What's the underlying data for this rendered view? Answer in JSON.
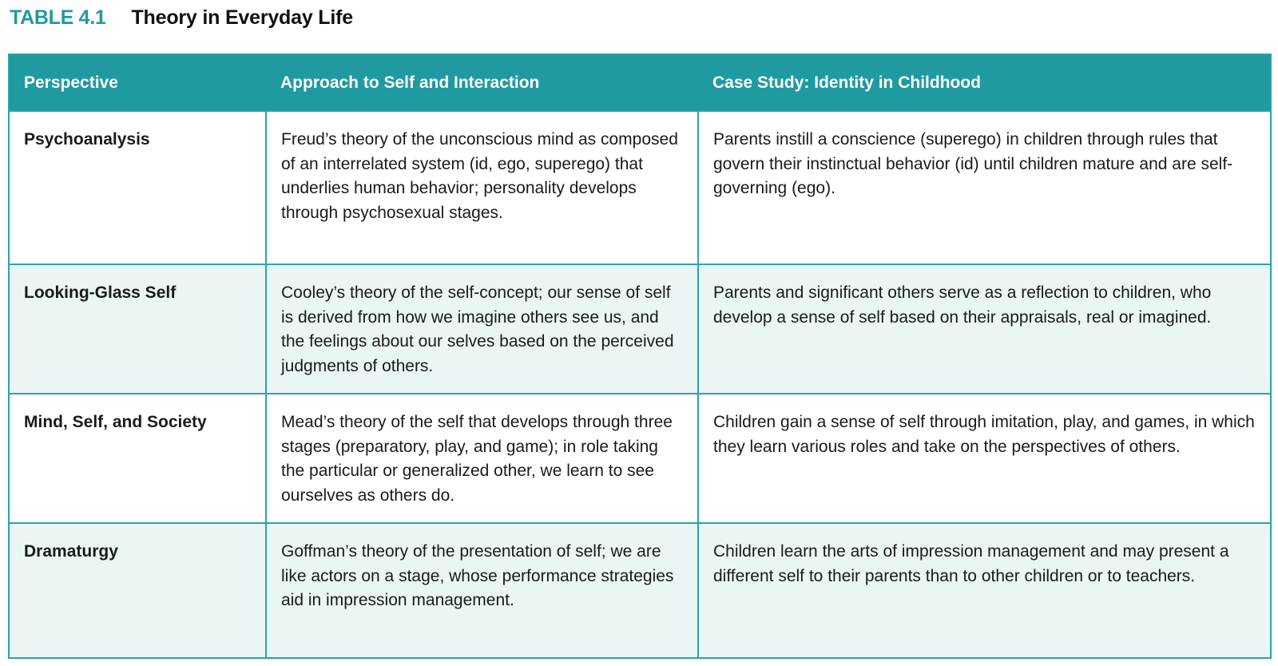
{
  "caption": {
    "label": "TABLE 4.1",
    "title": "Theory in Everyday Life"
  },
  "colors": {
    "accent": "#1f9aa1",
    "border": "#2ba3aa",
    "row_shade": "#eaf5f6"
  },
  "table": {
    "headers": [
      "Perspective",
      "Approach to Self and Interaction",
      "Case Study: Identity in Childhood"
    ],
    "rows": [
      {
        "perspective": "Psychoanalysis",
        "approach": "Freud’s theory of the unconscious mind as composed of an interrelated system (id, ego, superego) that underlies human behavior; personality develops through psychosexual stages.",
        "case_study": "Parents instill a conscience (superego) in children through rules that govern their instinctual behavior (id) until children mature and are self-governing (ego)."
      },
      {
        "perspective": "Looking-Glass Self",
        "approach": "Cooley’s theory of the self-concept; our sense of self is derived from how we imagine others see us, and the feelings about our selves based on the perceived judgments of others.",
        "case_study": "Parents and significant others serve as a reflection to children, who develop a sense of self based on their appraisals, real or imagined."
      },
      {
        "perspective": "Mind, Self, and Society",
        "approach": "Mead’s theory of the self that develops through three stages (preparatory, play, and game); in role taking the particular or generalized other, we learn to see ourselves as others do.",
        "case_study": "Children gain a sense of self through imitation, play, and games, in which they learn various roles and take on the perspectives of others."
      },
      {
        "perspective": "Dramaturgy",
        "approach": "Goffman’s theory of the presentation of self; we are like actors on a stage, whose performance strategies aid in impression management.",
        "case_study": "Children learn the arts of impression management and may present a different self to their parents than to other children or to teachers."
      }
    ]
  }
}
